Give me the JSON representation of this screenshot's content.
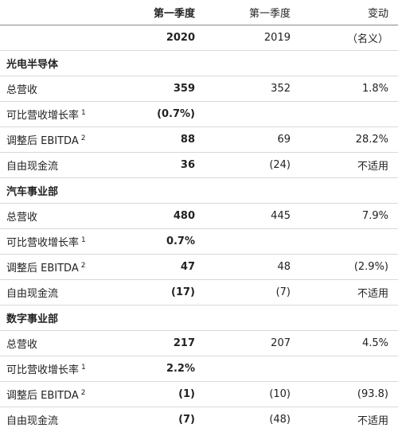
{
  "header": {
    "row1": [
      "第一季度",
      "第一季度",
      "变动"
    ],
    "row2": [
      "2020",
      "2019",
      "（名义）"
    ]
  },
  "sections": [
    {
      "title": "光电半导体",
      "rows": [
        {
          "label": "总营收",
          "q2020": "359",
          "q2019": "352",
          "change": "1.8%"
        },
        {
          "label": "可比营收增长率",
          "sup": "1",
          "q2020": "(0.7%)"
        },
        {
          "label": "调整后 EBITDA",
          "sup": "2",
          "q2020": "88",
          "q2019": "69",
          "change": "28.2%"
        },
        {
          "label": "自由现金流",
          "q2020": "36",
          "q2019": "(24)",
          "change": "不适用"
        }
      ]
    },
    {
      "title": "汽车事业部",
      "rows": [
        {
          "label": "总营收",
          "q2020": "480",
          "q2019": "445",
          "change": "7.9%"
        },
        {
          "label": "可比营收增长率",
          "sup": "1",
          "q2020": "0.7%"
        },
        {
          "label": "调整后 EBITDA",
          "sup": "2",
          "q2020": "47",
          "q2019": "48",
          "change": "(2.9%)"
        },
        {
          "label": "自由现金流",
          "q2020": "(17)",
          "q2019": "(7)",
          "change": "不适用"
        }
      ]
    },
    {
      "title": "数字事业部",
      "rows": [
        {
          "label": "总营收",
          "q2020": "217",
          "q2019": "207",
          "change": "4.5%"
        },
        {
          "label": "可比营收增长率",
          "sup": "1",
          "q2020": "2.2%"
        },
        {
          "label": "调整后 EBITDA",
          "sup": "2",
          "q2020": "(1)",
          "q2019": "(10)",
          "change": "(93.8)"
        },
        {
          "label": "自由现金流",
          "q2020": "(7)",
          "q2019": "(48)",
          "change": "不适用"
        }
      ]
    }
  ]
}
